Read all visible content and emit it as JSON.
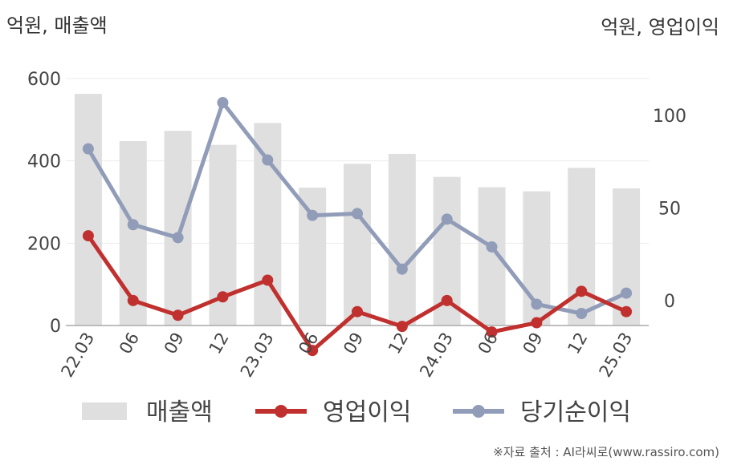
{
  "header": {
    "left_unit": "억원, 매출액",
    "right_unit": "억원, 영업이익"
  },
  "source": "※자료 출처 : AI라씨로(www.rassiro.com)",
  "colors": {
    "bar": "#dfdfdf",
    "operating_profit": "#c0302e",
    "net_profit": "#919db8",
    "axis": "#aaaaaa",
    "grid": "#ebebeb"
  },
  "chart_data": {
    "type": "bar+line",
    "categories": [
      "22.03",
      "06",
      "09",
      "12",
      "23.03",
      "06",
      "09",
      "12",
      "24.03",
      "06",
      "09",
      "12",
      "25.03"
    ],
    "left_axis": {
      "ylim": [
        0,
        600
      ],
      "ticks": [
        0,
        200,
        400,
        600
      ]
    },
    "right_axis": {
      "ylim": [
        -13.5,
        120
      ],
      "ticks": [
        0,
        50,
        100
      ]
    },
    "grid": true,
    "legend_position": "bottom",
    "series": [
      {
        "name": "매출액",
        "type": "bar",
        "axis": "left",
        "values": [
          563,
          448,
          473,
          439,
          492,
          335,
          393,
          417,
          361,
          336,
          326,
          383,
          333
        ]
      },
      {
        "name": "영업이익",
        "type": "line",
        "axis": "right",
        "values": [
          35,
          0,
          -8,
          2,
          11,
          -27,
          -6,
          -14,
          0,
          -17,
          -12,
          5,
          -6
        ]
      },
      {
        "name": "당기순이익",
        "type": "line",
        "axis": "right",
        "values": [
          82,
          41,
          34,
          107,
          76,
          46,
          47,
          17,
          44,
          29,
          -2,
          -7,
          4
        ]
      }
    ]
  }
}
